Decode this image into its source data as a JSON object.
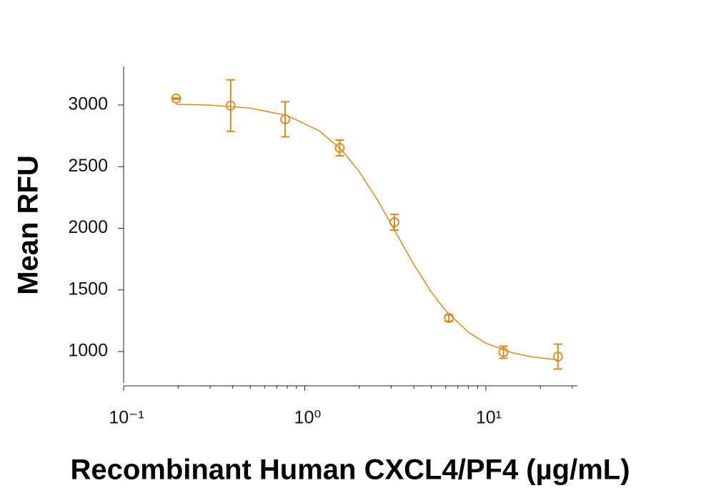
{
  "chart_data": {
    "type": "scatter",
    "x_label": "Recombinant Human CXCL4/PF4 (µg/mL)",
    "y_label": "Mean RFU",
    "xscale": "log",
    "xlim": [
      0.1,
      32
    ],
    "ylim": [
      745,
      3313
    ],
    "xticks": [
      {
        "value": 0.1,
        "label": "10⁻¹"
      },
      {
        "value": 1,
        "label": "10⁰"
      },
      {
        "value": 10,
        "label": "10¹"
      }
    ],
    "xminorticks": [
      0.2,
      0.3,
      0.4,
      0.5,
      0.6,
      0.7,
      0.8,
      0.9,
      2,
      3,
      4,
      5,
      6,
      7,
      8,
      9,
      20,
      30
    ],
    "yticks": [
      1000,
      1500,
      2000,
      2500,
      3000
    ],
    "series": [
      {
        "color": "#d98a1c",
        "x": [
          0.195,
          0.39,
          0.78,
          1.56,
          3.125,
          6.25,
          12.5,
          25
        ],
        "values": [
          3052,
          2995,
          2884,
          2652,
          2049,
          1272,
          994,
          959
        ],
        "errors": [
          5,
          209,
          142,
          64,
          64,
          26,
          49,
          101
        ]
      }
    ],
    "fit": {
      "color": "#d98a1c",
      "x": [
        0.195,
        0.3,
        0.5,
        0.8,
        1.2,
        1.6,
        2,
        2.5,
        3,
        3.5,
        4,
        5,
        6,
        8,
        10,
        14,
        18,
        25
      ],
      "values": [
        3006,
        2999,
        2975,
        2915,
        2792,
        2635,
        2459,
        2238,
        2034,
        1857,
        1707,
        1482,
        1331,
        1157,
        1068,
        989,
        956,
        933
      ]
    }
  }
}
